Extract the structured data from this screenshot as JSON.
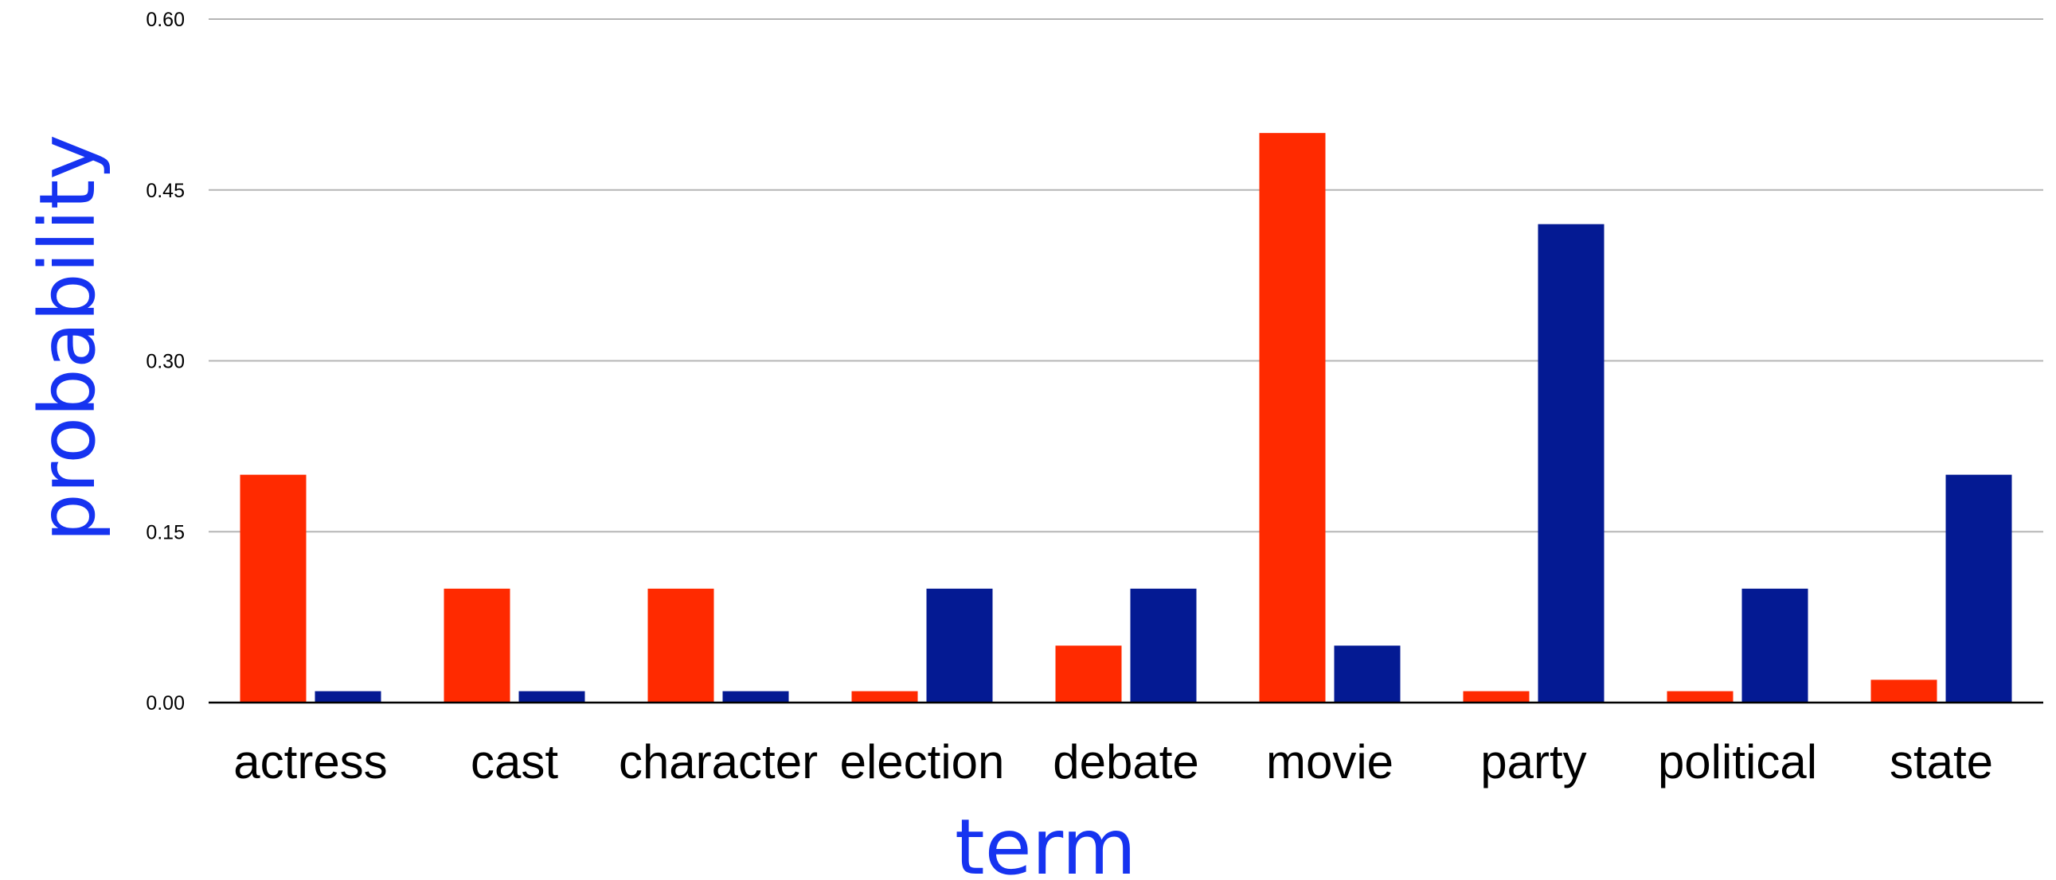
{
  "chart_data": {
    "type": "bar",
    "categories": [
      "actress",
      "cast",
      "character",
      "election",
      "debate",
      "movie",
      "party",
      "political",
      "state"
    ],
    "series": [
      {
        "values": [
          0.2,
          0.1,
          0.1,
          0.01,
          0.05,
          0.5,
          0.01,
          0.01,
          0.02
        ],
        "color": "#ff2a00"
      },
      {
        "values": [
          0.01,
          0.01,
          0.01,
          0.1,
          0.1,
          0.05,
          0.42,
          0.1,
          0.2
        ],
        "color": "#041a93"
      }
    ],
    "xlabel": "term",
    "ylabel": "probability",
    "ylim": [
      0,
      0.6
    ],
    "yticks": [
      "0.00",
      "0.15",
      "0.30",
      "0.45",
      "0.60"
    ],
    "grid": true,
    "legend": "none"
  }
}
